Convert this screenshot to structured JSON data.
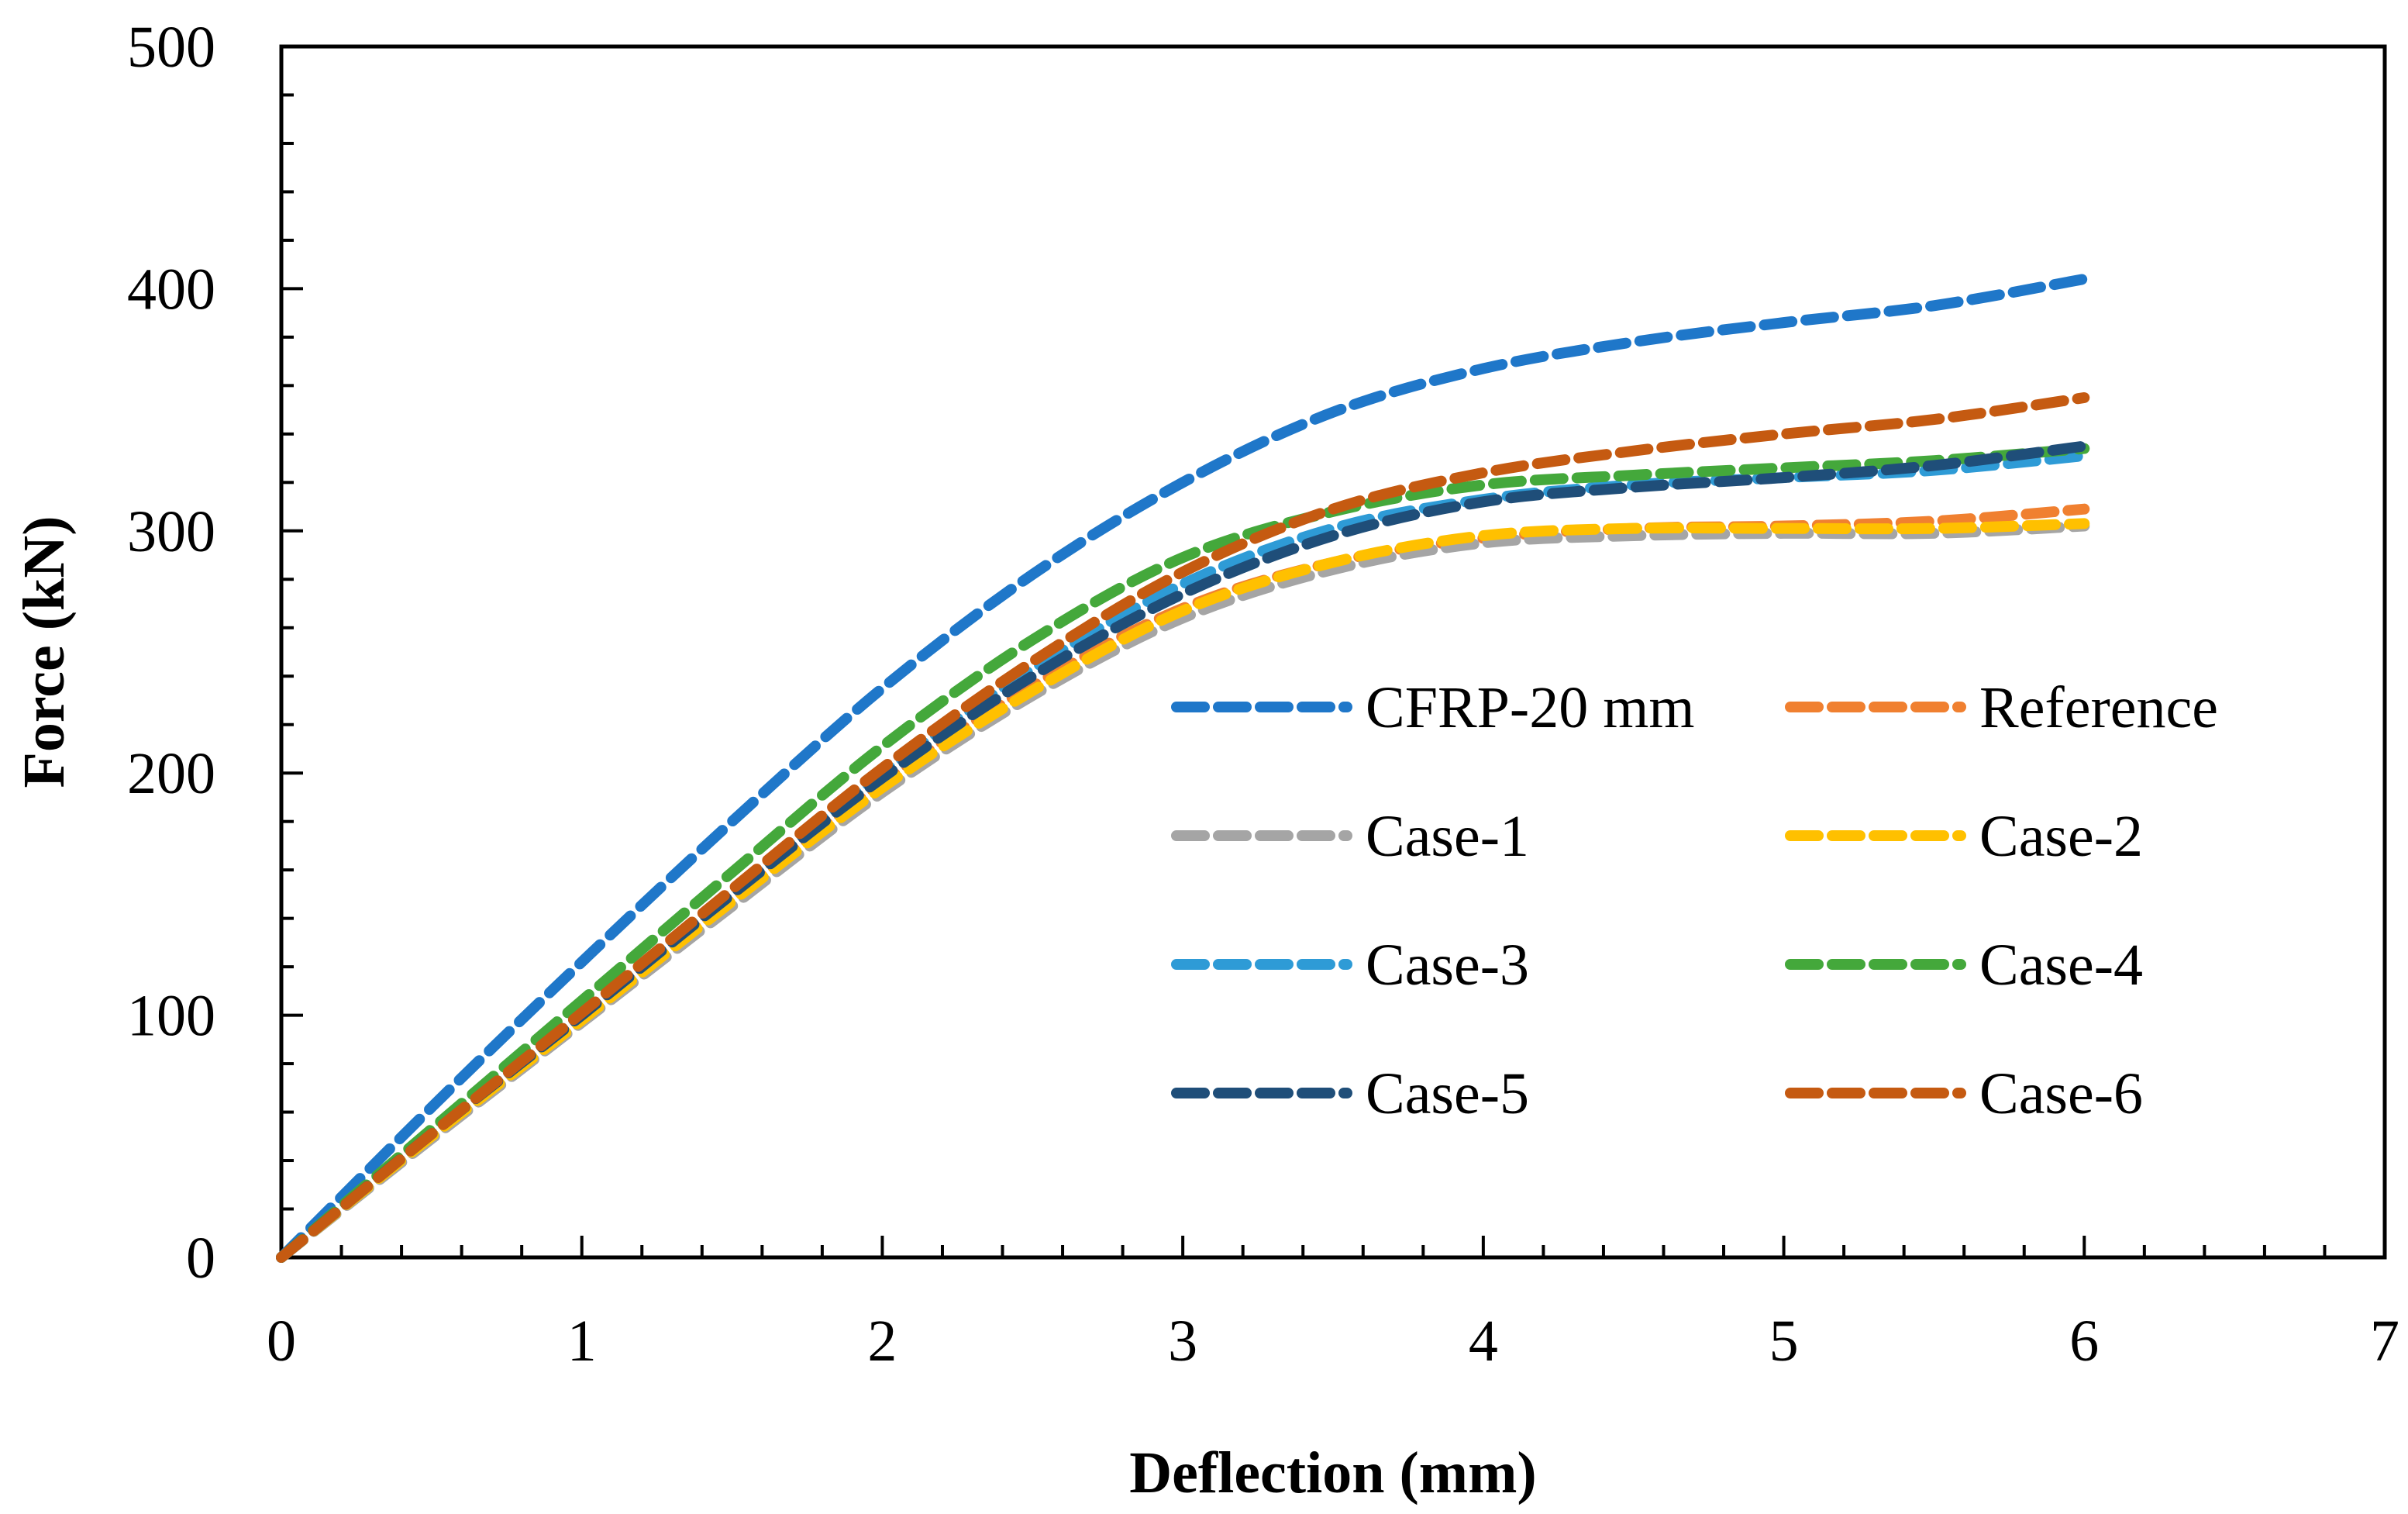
{
  "chart_data": {
    "type": "line",
    "xlabel": "Deflection (mm)",
    "ylabel": "Force (kN)",
    "xlim": [
      0,
      7
    ],
    "ylim": [
      0,
      500
    ],
    "xticks": [
      "0",
      "1",
      "2",
      "3",
      "4",
      "5",
      "6",
      "7"
    ],
    "yticks": [
      "0",
      "100",
      "200",
      "300",
      "400",
      "500"
    ],
    "grid": false,
    "legend_position": "center-right",
    "series": [
      {
        "name": "CFRP-20 mm",
        "color": "#1F77C9",
        "x": [
          0,
          0.5,
          1,
          1.5,
          2,
          2.5,
          3,
          3.5,
          4,
          4.5,
          5,
          5.5,
          6
        ],
        "y": [
          0,
          62,
          122,
          180,
          235,
          282,
          320,
          349,
          367,
          378,
          386,
          393,
          404
        ]
      },
      {
        "name": "Reference",
        "color": "#F08030",
        "x": [
          0,
          0.5,
          1,
          1.5,
          2,
          2.5,
          3,
          3.5,
          4,
          4.5,
          5,
          5.5,
          6
        ],
        "y": [
          0,
          50,
          99,
          148,
          196,
          236,
          268,
          287,
          297,
          301,
          302,
          304,
          309
        ]
      },
      {
        "name": "Case-1",
        "color": "#A5A5A5",
        "x": [
          0,
          0.5,
          1,
          1.5,
          2,
          2.5,
          3,
          3.5,
          4,
          4.5,
          5,
          5.5,
          6
        ],
        "y": [
          0,
          49,
          97,
          145,
          192,
          232,
          264,
          284,
          295,
          298,
          299,
          299,
          302
        ]
      },
      {
        "name": "Case-2",
        "color": "#FFC000",
        "x": [
          0,
          0.5,
          1,
          1.5,
          2,
          2.5,
          3,
          3.5,
          4,
          4.5,
          5,
          5.5,
          6
        ],
        "y": [
          0,
          50,
          98,
          147,
          194,
          234,
          267,
          287,
          298,
          301,
          301,
          301,
          303
        ]
      },
      {
        "name": "Case-3",
        "color": "#2E9BD6",
        "x": [
          0,
          0.5,
          1,
          1.5,
          2,
          2.5,
          3,
          3.5,
          4,
          4.5,
          5,
          5.5,
          6
        ],
        "y": [
          0,
          51,
          101,
          151,
          200,
          243,
          278,
          301,
          313,
          319,
          322,
          325,
          331
        ]
      },
      {
        "name": "Case-4",
        "color": "#44A83B",
        "x": [
          0,
          0.5,
          1,
          1.5,
          2,
          2.5,
          3,
          3.5,
          4,
          4.5,
          5,
          5.5,
          6
        ],
        "y": [
          0,
          53,
          106,
          159,
          211,
          255,
          289,
          308,
          319,
          323,
          326,
          329,
          334
        ]
      },
      {
        "name": "Case-5",
        "color": "#1F4E79",
        "x": [
          0,
          0.5,
          1,
          1.5,
          2,
          2.5,
          3,
          3.5,
          4,
          4.5,
          5,
          5.5,
          6
        ],
        "y": [
          0,
          51,
          100,
          150,
          198,
          240,
          274,
          298,
          312,
          318,
          322,
          327,
          335
        ]
      },
      {
        "name": "Case-6",
        "color": "#C55A11",
        "x": [
          0,
          0.5,
          1,
          1.5,
          2,
          2.5,
          3,
          3.5,
          4,
          4.5,
          5,
          5.5,
          6
        ],
        "y": [
          0,
          51,
          101,
          152,
          202,
          246,
          283,
          309,
          324,
          333,
          340,
          346,
          355
        ]
      }
    ]
  }
}
